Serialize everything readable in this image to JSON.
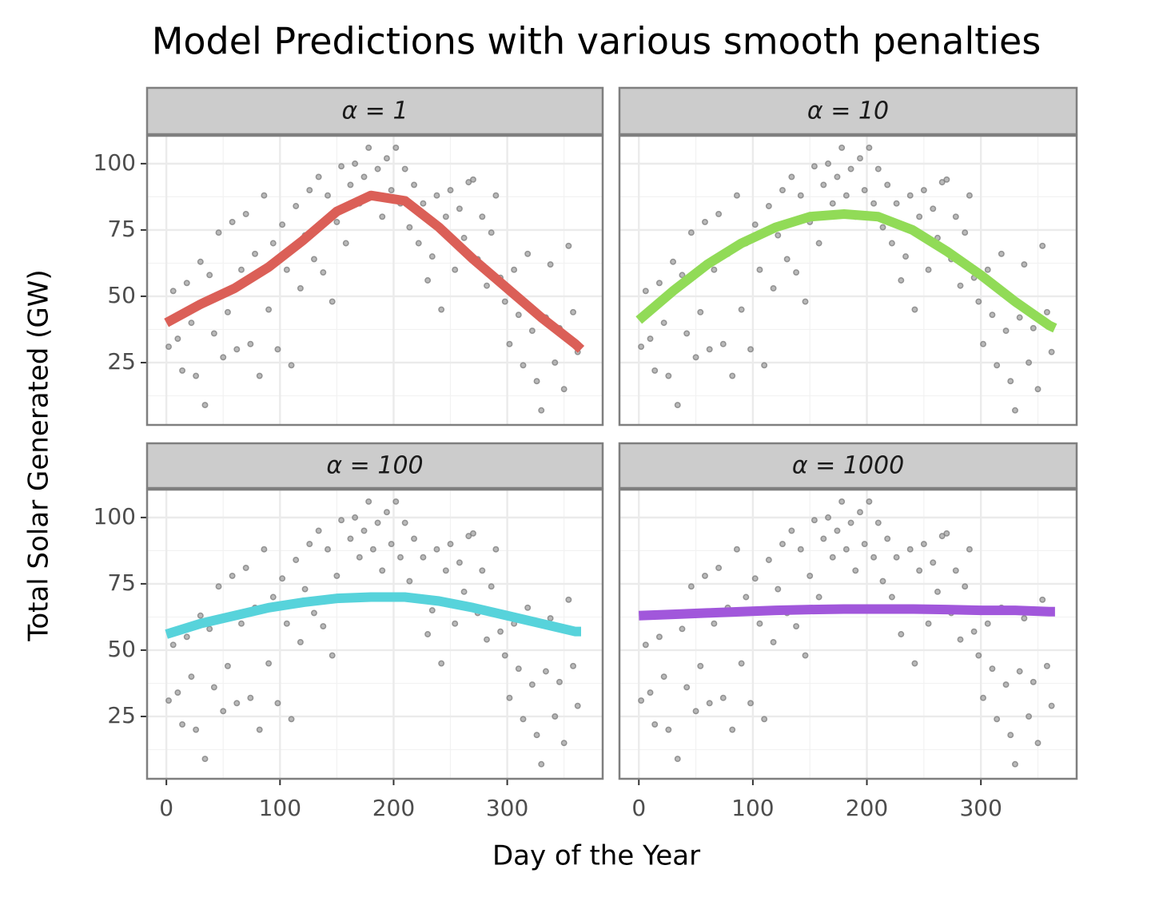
{
  "title": "Model Predictions with various smooth penalties",
  "x_label": "Day of the Year",
  "y_label": "Total Solar Generated (GW)",
  "points": {
    "x": [
      2,
      6,
      10,
      14,
      18,
      22,
      26,
      30,
      34,
      38,
      42,
      46,
      50,
      54,
      58,
      62,
      66,
      70,
      74,
      78,
      82,
      86,
      90,
      94,
      98,
      102,
      106,
      110,
      114,
      118,
      122,
      126,
      130,
      134,
      138,
      142,
      146,
      150,
      154,
      158,
      162,
      166,
      170,
      174,
      178,
      182,
      186,
      190,
      194,
      198,
      202,
      206,
      210,
      214,
      218,
      222,
      226,
      230,
      234,
      238,
      242,
      246,
      250,
      254,
      258,
      262,
      266,
      270,
      274,
      278,
      282,
      286,
      290,
      294,
      298,
      302,
      306,
      310,
      314,
      318,
      322,
      326,
      330,
      334,
      338,
      342,
      346,
      350,
      354,
      358,
      362
    ],
    "values": [
      31,
      52,
      34,
      22,
      55,
      40,
      20,
      63,
      9,
      58,
      36,
      74,
      27,
      44,
      78,
      30,
      60,
      81,
      32,
      66,
      20,
      88,
      45,
      70,
      30,
      77,
      60,
      24,
      84,
      53,
      73,
      90,
      64,
      95,
      59,
      88,
      48,
      78,
      99,
      70,
      92,
      100,
      85,
      95,
      106,
      88,
      98,
      80,
      102,
      90,
      106,
      85,
      98,
      76,
      92,
      70,
      85,
      56,
      65,
      88,
      45,
      80,
      90,
      60,
      83,
      72,
      93,
      94,
      64,
      80,
      54,
      74,
      88,
      57,
      48,
      32,
      60,
      43,
      24,
      66,
      37,
      18,
      7,
      42,
      62,
      25,
      38,
      15,
      69,
      44,
      29
    ],
    "color": "#808080"
  },
  "chart_data": [
    {
      "type": "line",
      "label": "α = 1",
      "series": [
        {
          "color": "#db5f57",
          "x": [
            0,
            30,
            60,
            90,
            120,
            150,
            180,
            210,
            240,
            270,
            300,
            330,
            360,
            365
          ],
          "values": [
            40,
            47,
            53,
            61,
            71,
            82,
            88,
            86,
            76,
            64,
            53,
            42,
            32,
            30
          ]
        }
      ],
      "xlim": [
        -17,
        384
      ],
      "ylim": [
        1.5,
        110.5
      ],
      "xticks": [
        0,
        100,
        200,
        300
      ],
      "yticks": [
        25,
        50,
        75,
        100
      ],
      "xminor": [
        50,
        150,
        250,
        350
      ],
      "yminor": [
        12.5,
        37.5,
        62.5,
        87.5
      ],
      "grid": true
    },
    {
      "type": "line",
      "label": "α = 10",
      "series": [
        {
          "color": "#91db57",
          "x": [
            0,
            30,
            60,
            90,
            120,
            150,
            180,
            210,
            240,
            270,
            300,
            330,
            360,
            365
          ],
          "values": [
            41,
            52,
            62,
            70,
            76,
            80,
            81,
            80,
            75,
            67,
            58,
            48,
            39,
            38
          ]
        }
      ],
      "xlim": [
        -17,
        384
      ],
      "ylim": [
        1.5,
        110.5
      ],
      "xticks": [
        0,
        100,
        200,
        300
      ],
      "yticks": [
        25,
        50,
        75,
        100
      ],
      "xminor": [
        50,
        150,
        250,
        350
      ],
      "yminor": [
        12.5,
        37.5,
        62.5,
        87.5
      ],
      "grid": true
    },
    {
      "type": "line",
      "label": "α = 100",
      "series": [
        {
          "color": "#57d3db",
          "x": [
            0,
            30,
            60,
            90,
            120,
            150,
            180,
            210,
            240,
            270,
            300,
            330,
            360,
            365
          ],
          "values": [
            56,
            60,
            63,
            66,
            68,
            69.5,
            70,
            70,
            68.5,
            66,
            63,
            60,
            57,
            57
          ]
        }
      ],
      "xlim": [
        -17,
        384
      ],
      "ylim": [
        1.5,
        110.5
      ],
      "xticks": [
        0,
        100,
        200,
        300
      ],
      "yticks": [
        25,
        50,
        75,
        100
      ],
      "xminor": [
        50,
        150,
        250,
        350
      ],
      "yminor": [
        12.5,
        37.5,
        62.5,
        87.5
      ],
      "grid": true
    },
    {
      "type": "line",
      "label": "α = 1000",
      "series": [
        {
          "color": "#a157db",
          "x": [
            0,
            30,
            60,
            90,
            120,
            150,
            180,
            210,
            240,
            270,
            300,
            330,
            360,
            365
          ],
          "values": [
            63,
            63.5,
            64,
            64.5,
            65,
            65.3,
            65.5,
            65.5,
            65.5,
            65.3,
            65,
            65,
            64.5,
            64.5
          ]
        }
      ],
      "xlim": [
        -17,
        384
      ],
      "ylim": [
        1.5,
        110.5
      ],
      "xticks": [
        0,
        100,
        200,
        300
      ],
      "yticks": [
        25,
        50,
        75,
        100
      ],
      "xminor": [
        50,
        150,
        250,
        350
      ],
      "yminor": [
        12.5,
        37.5,
        62.5,
        87.5
      ],
      "grid": true
    }
  ]
}
